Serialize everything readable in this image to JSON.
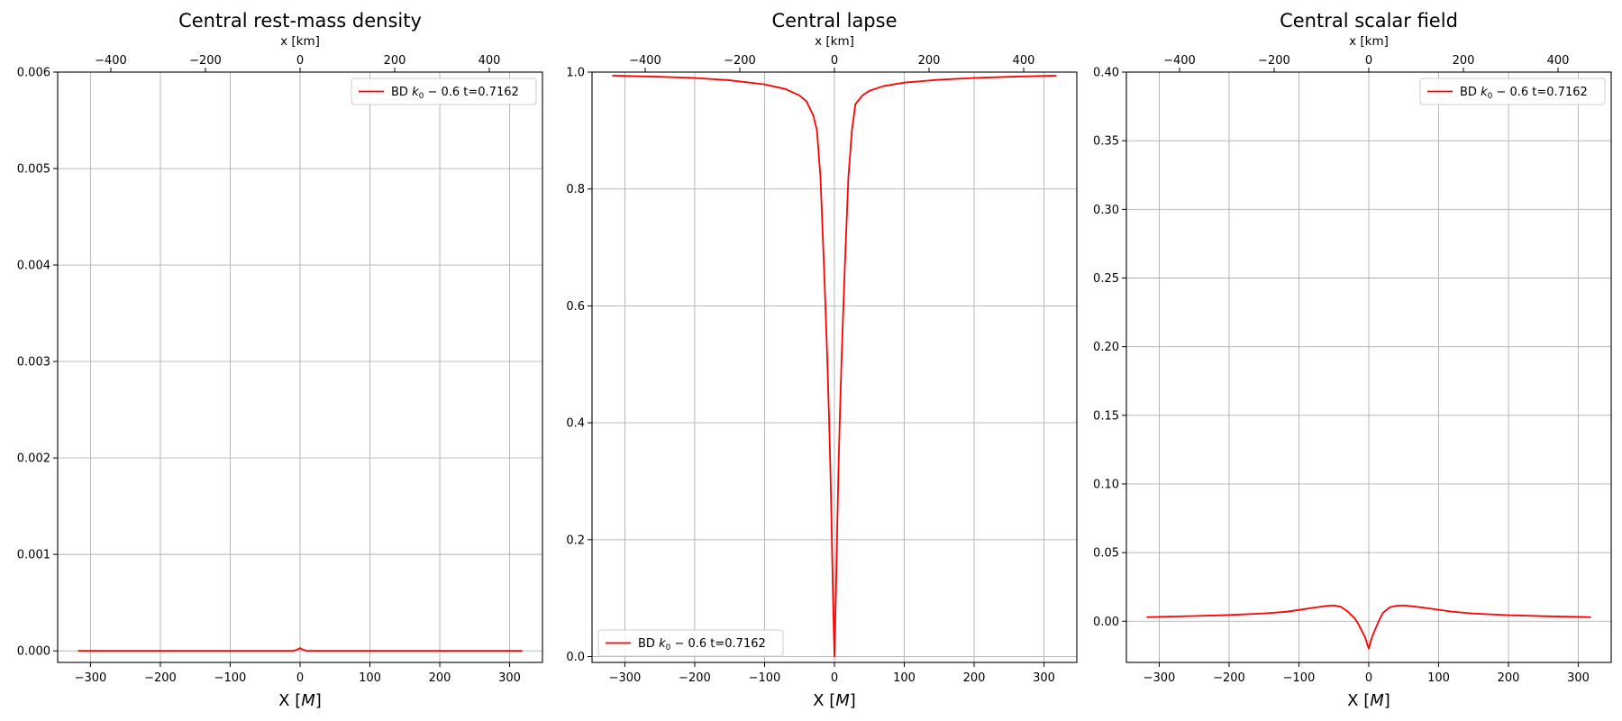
{
  "chart_data": [
    {
      "type": "line",
      "title": "Central rest-mass density",
      "xlabel": "X [M]",
      "xlabel_prefix": "X [",
      "xlabel_unit": "M",
      "xlabel_suffix": "]",
      "top_xlabel": "x [km]",
      "xlim": [
        -347,
        347
      ],
      "ylim": [
        -0.00012,
        0.006
      ],
      "xticks": [
        -300,
        -200,
        -100,
        0,
        100,
        200,
        300
      ],
      "xtick_labels": [
        "−300",
        "−200",
        "−100",
        "0",
        "100",
        "200",
        "300"
      ],
      "top_xticks": [
        -400,
        -200,
        0,
        200,
        400
      ],
      "top_xtick_labels": [
        "−400",
        "−200",
        "0",
        "200",
        "400"
      ],
      "km_per_M": 1.4766,
      "yticks": [
        0.0,
        0.001,
        0.002,
        0.003,
        0.004,
        0.005,
        0.006
      ],
      "ytick_labels": [
        "0.000",
        "0.001",
        "0.002",
        "0.003",
        "0.004",
        "0.005",
        "0.006"
      ],
      "grid": true,
      "legend_position": "top-right",
      "series": [
        {
          "name": "BD k₀ − 0.6  t=0.7162",
          "name_prefix": "BD ",
          "name_k": "k",
          "name_sub": "0",
          "name_rest": " − 0.6  t=0.7162",
          "color": "#ff0000",
          "x": [
            -318,
            -200,
            -100,
            -10,
            -5,
            -2,
            0,
            2,
            5,
            10,
            100,
            200,
            318
          ],
          "y": [
            0,
            0,
            0,
            0,
            1e-05,
            2e-05,
            3e-05,
            2e-05,
            1e-05,
            0,
            0,
            0,
            0
          ]
        }
      ]
    },
    {
      "type": "line",
      "title": "Central lapse",
      "xlabel": "X [M]",
      "xlabel_prefix": "X [",
      "xlabel_unit": "M",
      "xlabel_suffix": "]",
      "top_xlabel": "x [km]",
      "xlim": [
        -347,
        347
      ],
      "ylim": [
        -0.01,
        1.0
      ],
      "xticks": [
        -300,
        -200,
        -100,
        0,
        100,
        200,
        300
      ],
      "xtick_labels": [
        "−300",
        "−200",
        "−100",
        "0",
        "100",
        "200",
        "300"
      ],
      "top_xticks": [
        -400,
        -200,
        0,
        200,
        400
      ],
      "top_xtick_labels": [
        "−400",
        "−200",
        "0",
        "200",
        "400"
      ],
      "km_per_M": 1.4766,
      "yticks": [
        0.0,
        0.2,
        0.4,
        0.6,
        0.8,
        1.0
      ],
      "ytick_labels": [
        "0.0",
        "0.2",
        "0.4",
        "0.6",
        "0.8",
        "1.0"
      ],
      "grid": true,
      "legend_position": "bottom-left",
      "series": [
        {
          "name": "BD k₀ − 0.6  t=0.7162",
          "name_prefix": "BD ",
          "name_k": "k",
          "name_sub": "0",
          "name_rest": " − 0.6  t=0.7162",
          "color": "#ff0000",
          "x": [
            -318,
            -250,
            -200,
            -150,
            -100,
            -70,
            -50,
            -40,
            -30,
            -25,
            -20,
            -15,
            -12,
            -10,
            -8,
            -6,
            -4,
            -3,
            -2,
            -1,
            0,
            1,
            2,
            3,
            4,
            6,
            8,
            10,
            12,
            15,
            20,
            25,
            30,
            40,
            50,
            70,
            100,
            150,
            200,
            250,
            318
          ],
          "y": [
            0.994,
            0.992,
            0.99,
            0.986,
            0.979,
            0.971,
            0.96,
            0.95,
            0.925,
            0.9,
            0.82,
            0.67,
            0.57,
            0.5,
            0.42,
            0.33,
            0.22,
            0.16,
            0.1,
            0.05,
            0.0,
            0.05,
            0.1,
            0.16,
            0.22,
            0.33,
            0.42,
            0.5,
            0.57,
            0.67,
            0.82,
            0.9,
            0.945,
            0.96,
            0.968,
            0.976,
            0.982,
            0.987,
            0.99,
            0.992,
            0.994
          ]
        }
      ]
    },
    {
      "type": "line",
      "title": "Central scalar field",
      "xlabel": "X [M]",
      "xlabel_prefix": "X [",
      "xlabel_unit": "M",
      "xlabel_suffix": "]",
      "top_xlabel": "x [km]",
      "xlim": [
        -347,
        347
      ],
      "ylim": [
        -0.03,
        0.4
      ],
      "xticks": [
        -300,
        -200,
        -100,
        0,
        100,
        200,
        300
      ],
      "xtick_labels": [
        "−300",
        "−200",
        "−100",
        "0",
        "100",
        "200",
        "300"
      ],
      "top_xticks": [
        -400,
        -200,
        0,
        200,
        400
      ],
      "top_xtick_labels": [
        "−400",
        "−200",
        "0",
        "200",
        "400"
      ],
      "km_per_M": 1.4766,
      "yticks": [
        0.0,
        0.05,
        0.1,
        0.15,
        0.2,
        0.25,
        0.3,
        0.35,
        0.4
      ],
      "ytick_labels": [
        "0.00",
        "0.05",
        "0.10",
        "0.15",
        "0.20",
        "0.25",
        "0.30",
        "0.35",
        "0.40"
      ],
      "grid": true,
      "legend_position": "top-right",
      "series": [
        {
          "name": "BD k₀ − 0.6  t=0.7162",
          "name_prefix": "BD ",
          "name_k": "k",
          "name_sub": "0",
          "name_rest": " − 0.6  t=0.7162",
          "color": "#ff0000",
          "x": [
            -318,
            -250,
            -200,
            -150,
            -120,
            -100,
            -80,
            -60,
            -50,
            -40,
            -30,
            -20,
            -15,
            -10,
            -5,
            -2,
            0,
            2,
            5,
            10,
            15,
            20,
            30,
            40,
            50,
            60,
            80,
            100,
            120,
            150,
            200,
            250,
            318
          ],
          "y": [
            0.003,
            0.0038,
            0.0045,
            0.0057,
            0.0068,
            0.0082,
            0.0098,
            0.0112,
            0.0115,
            0.0105,
            0.007,
            0.002,
            -0.002,
            -0.007,
            -0.012,
            -0.017,
            -0.02,
            -0.016,
            -0.011,
            -0.005,
            0.001,
            0.006,
            0.0102,
            0.0113,
            0.0115,
            0.011,
            0.0098,
            0.0083,
            0.0069,
            0.0056,
            0.0044,
            0.0037,
            0.003
          ]
        }
      ]
    }
  ]
}
